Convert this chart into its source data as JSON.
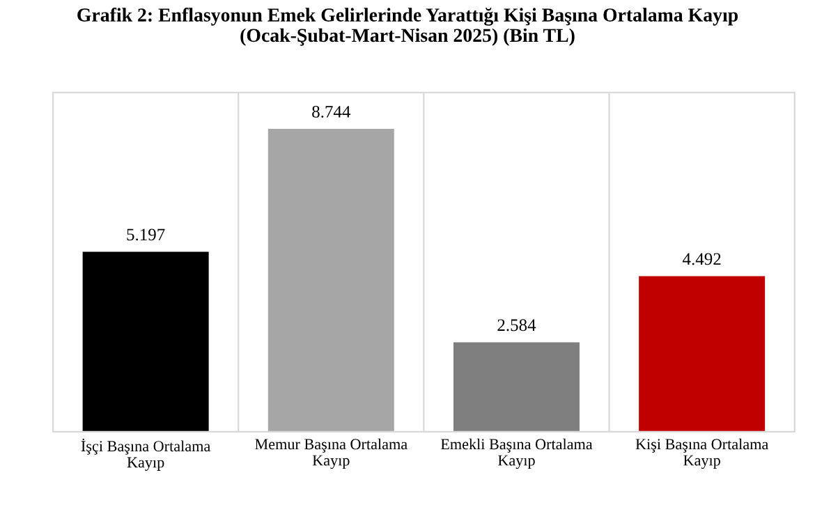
{
  "chart_data": {
    "type": "bar",
    "title": "Grafik 2: Enflasyonun Emek Gelirlerinde Yarattığı Kişi Başına Ortalama Kayıp\n(Ocak-Şubat-Mart-Nisan 2025) (Bin TL)",
    "categories": [
      "İşçi Başına Ortalama Kayıp",
      "Memur Başına Ortalama Kayıp",
      "Emekli Başına Ortalama Kayıp",
      "Kişi Başına Ortalama Kayıp"
    ],
    "values": [
      5.197,
      8.744,
      2.584,
      4.492
    ],
    "colors": [
      "#000000",
      "#a6a6a6",
      "#7f7f7f",
      "#c00000"
    ],
    "data_labels": true
  }
}
